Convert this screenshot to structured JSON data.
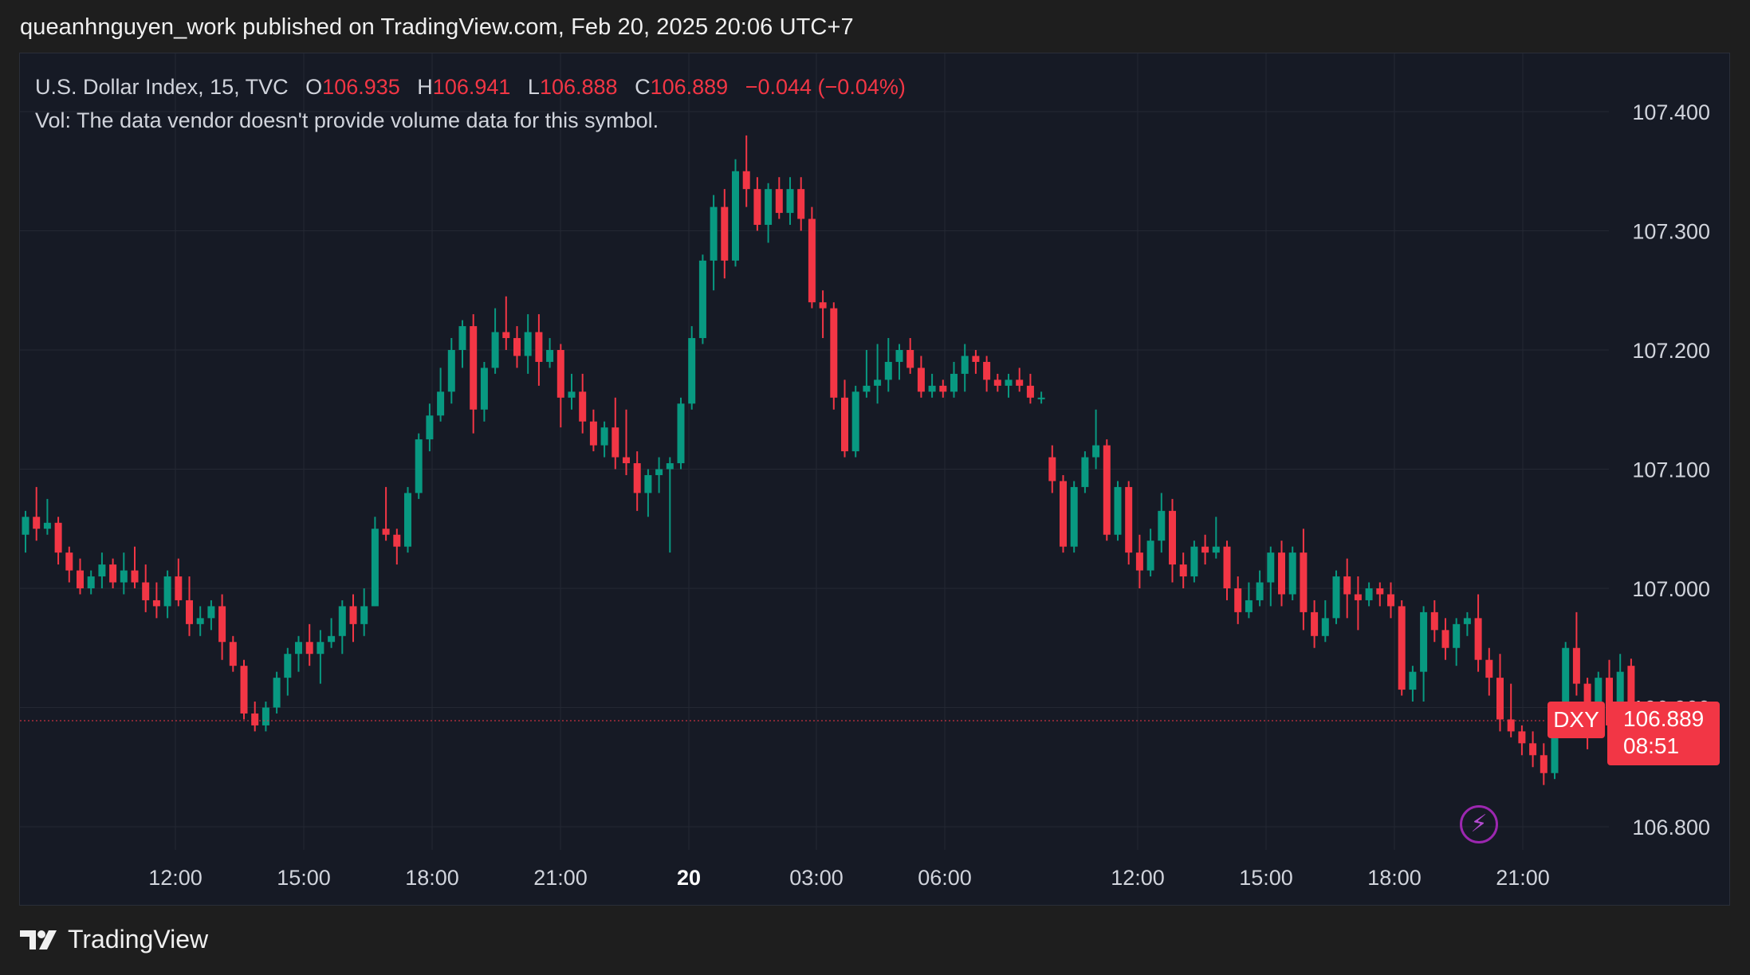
{
  "header": {
    "published_text": "queanhnguyen_work published on TradingView.com, Feb 20, 2025 20:06 UTC+7"
  },
  "legend": {
    "symbol_line": "U.S. Dollar Index, 15, TVC",
    "open_label": "O",
    "open_value": "106.935",
    "high_label": "H",
    "high_value": "106.941",
    "low_label": "L",
    "low_value": "106.888",
    "close_label": "C",
    "close_value": "106.889",
    "change_text": "−0.044 (−0.04%)",
    "volume_text": "Vol: The data vendor doesn't provide volume data for this symbol."
  },
  "price_tag": {
    "symbol": "DXY",
    "price": "106.889",
    "countdown": "08:51"
  },
  "footer": {
    "brand": "TradingView"
  },
  "colors": {
    "up": "#089981",
    "down": "#f23645",
    "background": "#161a25",
    "grid": "#242833",
    "text": "#d1d4dc"
  },
  "chart_data": {
    "type": "candlestick",
    "interval": "15",
    "y_ticks": [
      "107.400",
      "107.300",
      "107.200",
      "107.100",
      "107.000",
      "106.900",
      "106.800"
    ],
    "ylim": [
      106.785,
      107.43
    ],
    "x_ticks": [
      "12:00",
      "15:00",
      "18:00",
      "21:00",
      "20",
      "03:00",
      "06:00",
      "12:00",
      "15:00",
      "18:00",
      "21:00"
    ],
    "last_price": 106.889,
    "candles": [
      [
        107.045,
        107.065,
        107.03,
        107.06
      ],
      [
        107.06,
        107.085,
        107.04,
        107.05
      ],
      [
        107.05,
        107.075,
        107.045,
        107.055
      ],
      [
        107.055,
        107.06,
        107.02,
        107.03
      ],
      [
        107.03,
        107.035,
        107.005,
        107.015
      ],
      [
        107.015,
        107.025,
        106.995,
        107.0
      ],
      [
        107.0,
        107.015,
        106.995,
        107.01
      ],
      [
        107.01,
        107.03,
        107.0,
        107.02
      ],
      [
        107.02,
        107.025,
        107.0,
        107.005
      ],
      [
        107.005,
        107.03,
        106.995,
        107.015
      ],
      [
        107.015,
        107.035,
        107.0,
        107.005
      ],
      [
        107.005,
        107.02,
        106.98,
        106.99
      ],
      [
        106.99,
        107.005,
        106.975,
        106.985
      ],
      [
        106.985,
        107.015,
        106.975,
        107.01
      ],
      [
        107.01,
        107.025,
        106.985,
        106.99
      ],
      [
        106.99,
        107.01,
        106.96,
        106.97
      ],
      [
        106.97,
        106.985,
        106.96,
        106.975
      ],
      [
        106.975,
        106.99,
        106.965,
        106.985
      ],
      [
        106.985,
        106.995,
        106.94,
        106.955
      ],
      [
        106.955,
        106.96,
        106.93,
        106.935
      ],
      [
        106.935,
        106.94,
        106.89,
        106.895
      ],
      [
        106.895,
        106.905,
        106.88,
        106.885
      ],
      [
        106.885,
        106.905,
        106.88,
        106.9
      ],
      [
        106.9,
        106.93,
        106.895,
        106.925
      ],
      [
        106.925,
        106.95,
        106.91,
        106.945
      ],
      [
        106.945,
        106.96,
        106.93,
        106.955
      ],
      [
        106.955,
        106.97,
        106.935,
        106.945
      ],
      [
        106.945,
        106.965,
        106.92,
        106.955
      ],
      [
        106.955,
        106.975,
        106.95,
        106.96
      ],
      [
        106.96,
        106.99,
        106.945,
        106.985
      ],
      [
        106.985,
        106.995,
        106.955,
        106.97
      ],
      [
        106.97,
        107.0,
        106.96,
        106.985
      ],
      [
        106.985,
        107.06,
        106.985,
        107.05
      ],
      [
        107.05,
        107.085,
        107.04,
        107.045
      ],
      [
        107.045,
        107.05,
        107.02,
        107.035
      ],
      [
        107.035,
        107.085,
        107.03,
        107.08
      ],
      [
        107.08,
        107.13,
        107.075,
        107.125
      ],
      [
        107.125,
        107.155,
        107.115,
        107.145
      ],
      [
        107.145,
        107.185,
        107.14,
        107.165
      ],
      [
        107.165,
        107.21,
        107.155,
        107.2
      ],
      [
        107.2,
        107.225,
        107.185,
        107.22
      ],
      [
        107.22,
        107.23,
        107.13,
        107.15
      ],
      [
        107.15,
        107.19,
        107.14,
        107.185
      ],
      [
        107.185,
        107.235,
        107.18,
        107.215
      ],
      [
        107.215,
        107.245,
        107.2,
        107.21
      ],
      [
        107.21,
        107.22,
        107.185,
        107.195
      ],
      [
        107.195,
        107.23,
        107.18,
        107.215
      ],
      [
        107.215,
        107.23,
        107.17,
        107.19
      ],
      [
        107.19,
        107.21,
        107.185,
        107.2
      ],
      [
        107.2,
        107.205,
        107.135,
        107.16
      ],
      [
        107.16,
        107.18,
        107.15,
        107.165
      ],
      [
        107.165,
        107.18,
        107.13,
        107.14
      ],
      [
        107.14,
        107.15,
        107.115,
        107.12
      ],
      [
        107.12,
        107.14,
        107.11,
        107.135
      ],
      [
        107.135,
        107.16,
        107.1,
        107.11
      ],
      [
        107.11,
        107.15,
        107.095,
        107.105
      ],
      [
        107.105,
        107.115,
        107.065,
        107.08
      ],
      [
        107.08,
        107.1,
        107.06,
        107.095
      ],
      [
        107.095,
        107.11,
        107.08,
        107.1
      ],
      [
        107.1,
        107.11,
        107.03,
        107.105
      ],
      [
        107.105,
        107.16,
        107.1,
        107.155
      ],
      [
        107.155,
        107.22,
        107.15,
        107.21
      ],
      [
        107.21,
        107.28,
        107.205,
        107.275
      ],
      [
        107.275,
        107.33,
        107.25,
        107.32
      ],
      [
        107.32,
        107.335,
        107.26,
        107.275
      ],
      [
        107.275,
        107.36,
        107.27,
        107.35
      ],
      [
        107.35,
        107.38,
        107.32,
        107.335
      ],
      [
        107.335,
        107.345,
        107.3,
        107.305
      ],
      [
        107.305,
        107.34,
        107.29,
        107.335
      ],
      [
        107.335,
        107.345,
        107.31,
        107.315
      ],
      [
        107.315,
        107.345,
        107.305,
        107.335
      ],
      [
        107.335,
        107.345,
        107.3,
        107.31
      ],
      [
        107.31,
        107.32,
        107.235,
        107.24
      ],
      [
        107.24,
        107.25,
        107.21,
        107.235
      ],
      [
        107.235,
        107.24,
        107.15,
        107.16
      ],
      [
        107.16,
        107.175,
        107.11,
        107.115
      ],
      [
        107.115,
        107.17,
        107.11,
        107.165
      ],
      [
        107.165,
        107.2,
        107.16,
        107.17
      ],
      [
        107.17,
        107.205,
        107.155,
        107.175
      ],
      [
        107.175,
        107.21,
        107.165,
        107.19
      ],
      [
        107.19,
        107.205,
        107.175,
        107.2
      ],
      [
        107.2,
        107.21,
        107.18,
        107.185
      ],
      [
        107.185,
        107.195,
        107.16,
        107.165
      ],
      [
        107.165,
        107.18,
        107.16,
        107.17
      ],
      [
        107.17,
        107.175,
        107.16,
        107.165
      ],
      [
        107.165,
        107.19,
        107.16,
        107.18
      ],
      [
        107.18,
        107.205,
        107.165,
        107.195
      ],
      [
        107.195,
        107.2,
        107.18,
        107.19
      ],
      [
        107.19,
        107.195,
        107.165,
        107.175
      ],
      [
        107.175,
        107.18,
        107.165,
        107.17
      ],
      [
        107.17,
        107.18,
        107.16,
        107.175
      ],
      [
        107.175,
        107.185,
        107.165,
        107.17
      ],
      [
        107.17,
        107.18,
        107.155,
        107.16
      ],
      [
        107.16,
        107.165,
        107.155,
        107.16
      ],
      [
        107.11,
        107.12,
        107.08,
        107.09
      ],
      [
        107.09,
        107.095,
        107.03,
        107.035
      ],
      [
        107.035,
        107.09,
        107.03,
        107.085
      ],
      [
        107.085,
        107.115,
        107.08,
        107.11
      ],
      [
        107.11,
        107.15,
        107.1,
        107.12
      ],
      [
        107.12,
        107.125,
        107.04,
        107.045
      ],
      [
        107.045,
        107.09,
        107.04,
        107.085
      ],
      [
        107.085,
        107.09,
        107.02,
        107.03
      ],
      [
        107.03,
        107.045,
        107.0,
        107.015
      ],
      [
        107.015,
        107.05,
        107.01,
        107.04
      ],
      [
        107.04,
        107.08,
        107.03,
        107.065
      ],
      [
        107.065,
        107.075,
        107.005,
        107.02
      ],
      [
        107.02,
        107.03,
        107.0,
        107.01
      ],
      [
        107.01,
        107.04,
        107.005,
        107.035
      ],
      [
        107.035,
        107.045,
        107.02,
        107.03
      ],
      [
        107.03,
        107.06,
        107.025,
        107.035
      ],
      [
        107.035,
        107.04,
        106.99,
        107.0
      ],
      [
        107.0,
        107.01,
        106.97,
        106.98
      ],
      [
        106.98,
        107.005,
        106.975,
        106.99
      ],
      [
        106.99,
        107.015,
        106.985,
        107.005
      ],
      [
        107.005,
        107.035,
        106.985,
        107.03
      ],
      [
        107.03,
        107.04,
        106.985,
        106.995
      ],
      [
        106.995,
        107.035,
        106.99,
        107.03
      ],
      [
        107.03,
        107.05,
        106.965,
        106.98
      ],
      [
        106.98,
        106.99,
        106.95,
        106.96
      ],
      [
        106.96,
        106.99,
        106.955,
        106.975
      ],
      [
        106.975,
        107.015,
        106.97,
        107.01
      ],
      [
        107.01,
        107.025,
        106.975,
        106.995
      ],
      [
        106.995,
        107.01,
        106.965,
        106.99
      ],
      [
        106.99,
        107.005,
        106.985,
        107.0
      ],
      [
        107.0,
        107.005,
        106.985,
        106.995
      ],
      [
        106.995,
        107.005,
        106.975,
        106.985
      ],
      [
        106.985,
        106.99,
        106.91,
        106.915
      ],
      [
        106.915,
        106.935,
        106.905,
        106.93
      ],
      [
        106.93,
        106.985,
        106.905,
        106.98
      ],
      [
        106.98,
        106.99,
        106.955,
        106.965
      ],
      [
        106.965,
        106.975,
        106.94,
        106.95
      ],
      [
        106.95,
        106.975,
        106.935,
        106.97
      ],
      [
        106.97,
        106.98,
        106.96,
        106.975
      ],
      [
        106.975,
        106.995,
        106.93,
        106.94
      ],
      [
        106.94,
        106.95,
        106.91,
        106.925
      ],
      [
        106.925,
        106.945,
        106.88,
        106.89
      ],
      [
        106.89,
        106.92,
        106.875,
        106.88
      ],
      [
        106.88,
        106.885,
        106.86,
        106.87
      ],
      [
        106.87,
        106.88,
        106.85,
        106.86
      ],
      [
        106.86,
        106.87,
        106.835,
        106.845
      ],
      [
        106.845,
        106.905,
        106.84,
        106.9
      ],
      [
        106.9,
        106.955,
        106.895,
        106.95
      ],
      [
        106.95,
        106.98,
        106.91,
        106.92
      ],
      [
        106.92,
        106.925,
        106.865,
        106.885
      ],
      [
        106.885,
        106.93,
        106.88,
        106.925
      ],
      [
        106.925,
        106.94,
        106.875,
        106.885
      ],
      [
        106.885,
        106.945,
        106.88,
        106.93
      ],
      [
        106.935,
        106.941,
        106.888,
        106.889
      ]
    ]
  }
}
